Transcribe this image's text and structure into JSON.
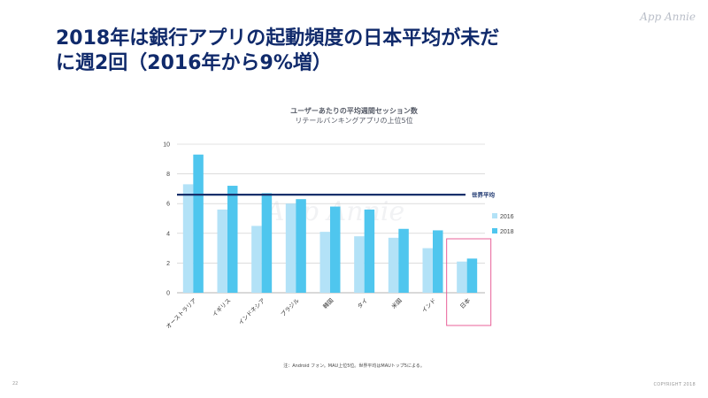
{
  "slide": {
    "title_line1": "2018年は銀行アプリの起動頻度の日本平均が未だ",
    "title_line2": "に週2回（2016年から9%増）",
    "logo": "App Annie",
    "watermark": "App Annie",
    "footnote": "注：Android フォン。MAU上位5位。世界平均はMAUトップ5による。",
    "page_number": "22",
    "copyright": "COPYRIGHT 2018"
  },
  "colors": {
    "title": "#102a6b",
    "series_2016": "#b3e2f7",
    "series_2018": "#4fc6ee",
    "average_line": "#16306b",
    "highlight_box": "#e8619a"
  },
  "chart_data": {
    "type": "bar",
    "title": "ユーザーあたりの平均週間セッション数",
    "subtitle": "リテールバンキングアプリの上位5位",
    "categories": [
      "オーストラリア",
      "イギリス",
      "インドネシア",
      "ブラジル",
      "韓国",
      "タイ",
      "米国",
      "インド",
      "日本"
    ],
    "series": [
      {
        "name": "2016",
        "values": [
          7.3,
          5.6,
          4.5,
          6.0,
          4.1,
          3.8,
          3.7,
          3.0,
          2.1
        ]
      },
      {
        "name": "2018",
        "values": [
          9.3,
          7.2,
          6.7,
          6.3,
          5.8,
          5.6,
          4.3,
          4.2,
          2.3
        ]
      }
    ],
    "yticks": [
      0,
      2,
      4,
      6,
      8,
      10
    ],
    "ylim": [
      0,
      10
    ],
    "xlabel": "",
    "ylabel": "",
    "reference_line": {
      "label": "世界平均",
      "value": 6.6
    },
    "highlight_category": "日本",
    "legend_position": "right",
    "grid": true
  }
}
